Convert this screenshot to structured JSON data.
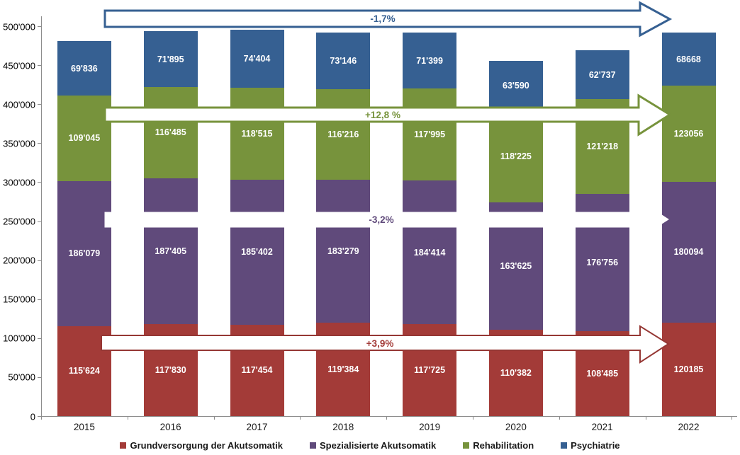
{
  "chart_data": {
    "type": "bar",
    "stacked": true,
    "title": "",
    "xlabel": "",
    "ylabel": "",
    "categories": [
      "2015",
      "2016",
      "2017",
      "2018",
      "2019",
      "2020",
      "2021",
      "2022"
    ],
    "series": [
      {
        "name": "Grundversorgung der Akutsomatik",
        "color": "#A33B38",
        "values": [
          115624,
          117830,
          117454,
          119384,
          117725,
          110382,
          108485,
          120185
        ],
        "display": [
          "115'624",
          "117'830",
          "117'454",
          "119'384",
          "117'725",
          "110'382",
          "108'485",
          "120185"
        ]
      },
      {
        "name": "Spezialisierte Akutsomatik",
        "color": "#604A7B",
        "values": [
          186079,
          187405,
          185402,
          183279,
          184414,
          163625,
          176756,
          180094
        ],
        "display": [
          "186'079",
          "187'405",
          "185'402",
          "183'279",
          "184'414",
          "163'625",
          "176'756",
          "180094"
        ]
      },
      {
        "name": "Rehabilitation",
        "color": "#77933C",
        "values": [
          109045,
          116485,
          118515,
          116216,
          117995,
          118225,
          121218,
          123056
        ],
        "display": [
          "109'045",
          "116'485",
          "118'515",
          "116'216",
          "117'995",
          "118'225",
          "121'218",
          "123056"
        ]
      },
      {
        "name": "Psychiatrie",
        "color": "#366092",
        "values": [
          69836,
          71895,
          74404,
          73146,
          71399,
          63590,
          62737,
          68668
        ],
        "display": [
          "69'836",
          "71'895",
          "74'404",
          "73'146",
          "71'399",
          "63'590",
          "62'737",
          "68668"
        ]
      }
    ],
    "ylim": [
      0,
      500000
    ],
    "ytick_step": 50000,
    "ytick_labels": [
      "0",
      "50'000",
      "100'000",
      "150'000",
      "200'000",
      "250'000",
      "300'000",
      "350'000",
      "400'000",
      "450'000",
      "500'000"
    ],
    "grid": false,
    "legend_position": "bottom"
  },
  "arrows": [
    {
      "series": "Psychiatrie",
      "label": "-1,7%",
      "fill": "#FFFFFF",
      "outline": "#366092",
      "text_color": "#366092"
    },
    {
      "series": "Rehabilitation",
      "label": "+12,8 %",
      "fill": "#FFFFFF",
      "outline": "#77933C",
      "text_color": "#77933C"
    },
    {
      "series": "Spezialisierte Akutsomatik",
      "label": "-3,2%",
      "fill": "#FFFFFF",
      "outline": "#FFFFFF",
      "text_color": "#604A7B"
    },
    {
      "series": "Grundversorgung der Akutsomatik",
      "label": "+3,9%",
      "fill": "#FFFFFF",
      "outline": "#953734",
      "text_color": "#A33B38"
    }
  ]
}
